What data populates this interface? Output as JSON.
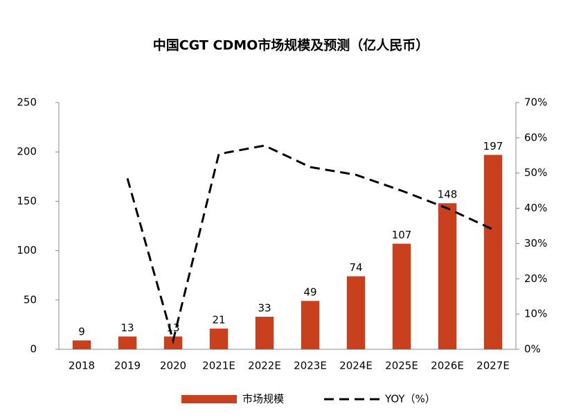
{
  "chart_data": {
    "type": "bar",
    "title": "中国CGT CDMO市场规模及预测（亿人民币）",
    "categories": [
      "2018",
      "2019",
      "2020",
      "2021E",
      "2022E",
      "2023E",
      "2024E",
      "2025E",
      "2026E",
      "2027E"
    ],
    "series": [
      {
        "name": "市场规模",
        "type": "bar",
        "color": "#c9401e",
        "values": [
          9,
          13,
          13,
          21,
          33,
          49,
          74,
          107,
          148,
          197
        ]
      },
      {
        "name": "YOY（%）",
        "type": "line",
        "axis": "y2",
        "color": "#000000",
        "dashed": true,
        "values": [
          null,
          48.5,
          2.5,
          55.4,
          57.8,
          51.7,
          49.5,
          45,
          40,
          34
        ]
      }
    ],
    "ylim": [
      0,
      250
    ],
    "yticks": [
      0,
      50,
      100,
      150,
      200,
      250
    ],
    "y2lim": [
      0,
      70
    ],
    "y2ticks": [
      {
        "value": 0,
        "label": "0%"
      },
      {
        "value": 10,
        "label": "10%"
      },
      {
        "value": 20,
        "label": "20%"
      },
      {
        "value": 30,
        "label": "30%"
      },
      {
        "value": 40,
        "label": "40%"
      },
      {
        "value": 50,
        "label": "50%"
      },
      {
        "value": 60,
        "label": "60%"
      },
      {
        "value": 70,
        "label": "70%"
      }
    ],
    "legend": "bottom"
  }
}
